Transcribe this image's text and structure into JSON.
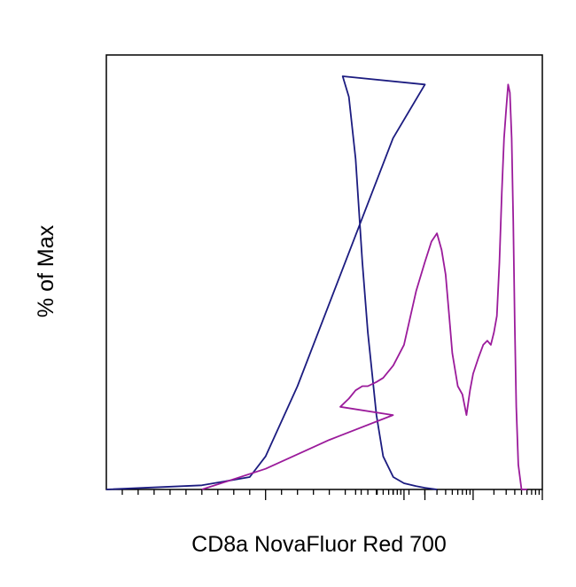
{
  "chart_data": {
    "type": "line",
    "title": "",
    "xlabel": "CD8a NovaFluor Red 700",
    "ylabel": "% of Max",
    "x_scale": "log",
    "xlim": [
      -100,
      100000
    ],
    "ylim": [
      0,
      100
    ],
    "grid": false,
    "legend": "none",
    "series": [
      {
        "color": "#1c1c80",
        "x": [
          -100,
          -40,
          -10,
          0,
          20,
          50,
          80,
          100,
          130,
          160,
          200,
          250,
          300,
          400,
          500,
          700,
          1000,
          1500,
          2000,
          3000
        ],
        "y": [
          0,
          1,
          3,
          8,
          25,
          55,
          85,
          98,
          100,
          95,
          80,
          55,
          38,
          18,
          8,
          3,
          1.5,
          0.8,
          0.4,
          0
        ]
      },
      {
        "color": "#9b1b9b",
        "x": [
          -40,
          0,
          40,
          80,
          120,
          160,
          200,
          250,
          300,
          400,
          500,
          700,
          1000,
          1500,
          2000,
          2500,
          3000,
          3500,
          4000,
          4500,
          5000,
          6000,
          7000,
          8000,
          9000,
          10000,
          12000,
          14000,
          16000,
          18000,
          20000,
          22000,
          24000,
          26000,
          28000,
          30000,
          32000,
          34000,
          36000,
          38000,
          40000,
          42000,
          45000,
          50000,
          55000,
          60000
        ],
        "y": [
          0,
          5,
          12,
          18,
          20,
          22,
          24,
          25,
          25,
          26,
          27,
          30,
          35,
          48,
          55,
          60,
          62,
          58,
          52,
          42,
          33,
          25,
          23,
          18,
          24,
          28,
          32,
          35,
          36,
          35,
          38,
          42,
          55,
          72,
          85,
          92,
          98,
          96,
          85,
          65,
          40,
          20,
          6,
          0,
          0,
          0
        ]
      }
    ]
  }
}
